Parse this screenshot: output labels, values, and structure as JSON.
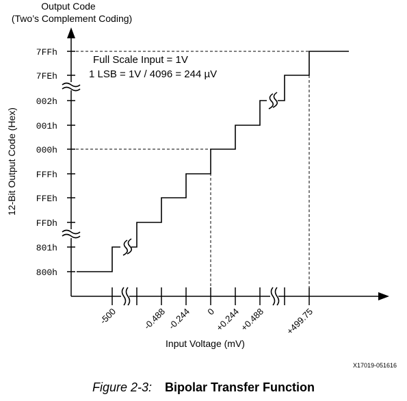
{
  "diagram": {
    "y_axis_title_line1": "Output Code",
    "y_axis_title_line2": "(Two’s Complement Coding)",
    "y_axis_label": "12-Bit Output Code (Hex)",
    "x_axis_label": "Input Voltage (mV)",
    "y_ticks": [
      "7FFh",
      "7FEh",
      "002h",
      "001h",
      "000h",
      "FFFh",
      "FFEh",
      "FFDh",
      "801h",
      "800h"
    ],
    "x_ticks": [
      "-500",
      "-0.488",
      "-0.244",
      "0",
      "+0.244",
      "+0.488",
      "+499.75"
    ],
    "annotation_line1": "Full Scale Input = 1V",
    "annotation_line2": "1 LSB = 1V / 4096 = 244 µV",
    "figure_id": "X17019-051616"
  },
  "caption": {
    "figure_number": "Figure 2-3:",
    "title": "Bipolar Transfer Function"
  }
}
